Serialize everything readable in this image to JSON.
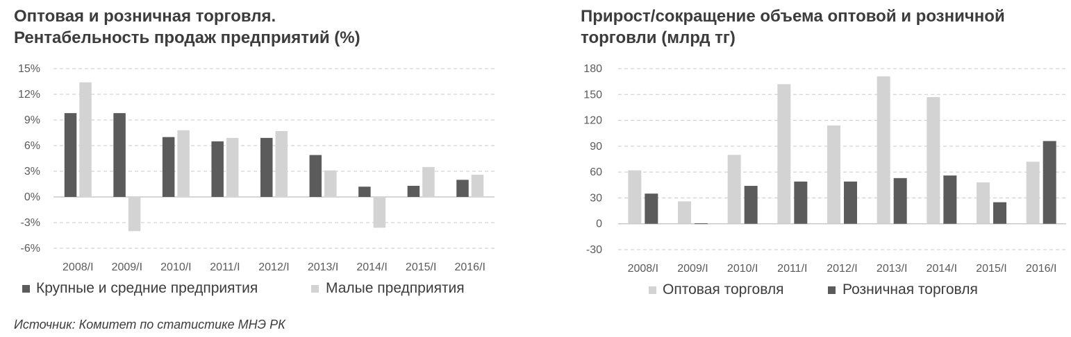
{
  "charts": {
    "left": {
      "title_line1": "Оптовая и розничная торговля.",
      "title_line2": "Рентабельность продаж предприятий (%)"
    },
    "right": {
      "title_line1": "Прирост/сокращение объема оптовой и розничной",
      "title_line2": "торговли (млрд тг)"
    }
  },
  "source": "Источник: Комитет по статистике МНЭ РК",
  "colors": {
    "dark_series": "#5b5b5b",
    "light_series": "#d3d3d3",
    "grid": "#c8c8c8",
    "axis": "#bdbdbd"
  },
  "chart_data": [
    {
      "type": "bar",
      "title": "Оптовая и розничная торговля. Рентабельность продаж предприятий (%)",
      "categories": [
        "2008/I",
        "2009/I",
        "2010/I",
        "2011/I",
        "2012/I",
        "2013/I",
        "2014/I",
        "2015/I",
        "2016/I"
      ],
      "series": [
        {
          "name": "Крупные и средние предприятия",
          "color": "#5b5b5b",
          "values": [
            9.8,
            9.8,
            7.0,
            6.5,
            6.9,
            4.9,
            1.2,
            1.3,
            2.0
          ]
        },
        {
          "name": "Малые предприятия",
          "color": "#d3d3d3",
          "values": [
            13.4,
            -4.0,
            7.8,
            6.9,
            7.7,
            3.1,
            -3.6,
            3.5,
            2.6
          ]
        }
      ],
      "ylim": [
        -6,
        15
      ],
      "yticks": [
        15,
        12,
        9,
        6,
        3,
        0,
        -3,
        -6
      ],
      "ytick_labels": [
        "15%",
        "12%",
        "9%",
        "6%",
        "3%",
        "0%",
        "-3%",
        "-6%"
      ],
      "xlabel": "",
      "ylabel": "",
      "grid": true,
      "legend": "bottom"
    },
    {
      "type": "bar",
      "title": "Прирост/сокращение объема оптовой и розничной торговли (млрд тг)",
      "categories": [
        "2008/I",
        "2009/I",
        "2010/I",
        "2011/I",
        "2012/I",
        "2013/I",
        "2014/I",
        "2015/I",
        "2016/I"
      ],
      "series": [
        {
          "name": "Оптовая торговля",
          "color": "#d3d3d3",
          "values": [
            62,
            26,
            80,
            162,
            114,
            171,
            147,
            48,
            72
          ]
        },
        {
          "name": "Розничная торговля",
          "color": "#5b5b5b",
          "values": [
            35,
            0.5,
            44,
            49,
            49,
            53,
            56,
            25,
            96
          ]
        }
      ],
      "ylim": [
        -30,
        180
      ],
      "yticks": [
        180,
        150,
        120,
        90,
        60,
        30,
        0,
        -30
      ],
      "ytick_labels": [
        "180",
        "150",
        "120",
        "90",
        "60",
        "30",
        "0",
        "-30"
      ],
      "xlabel": "",
      "ylabel": "",
      "grid": true,
      "legend": "bottom"
    }
  ]
}
